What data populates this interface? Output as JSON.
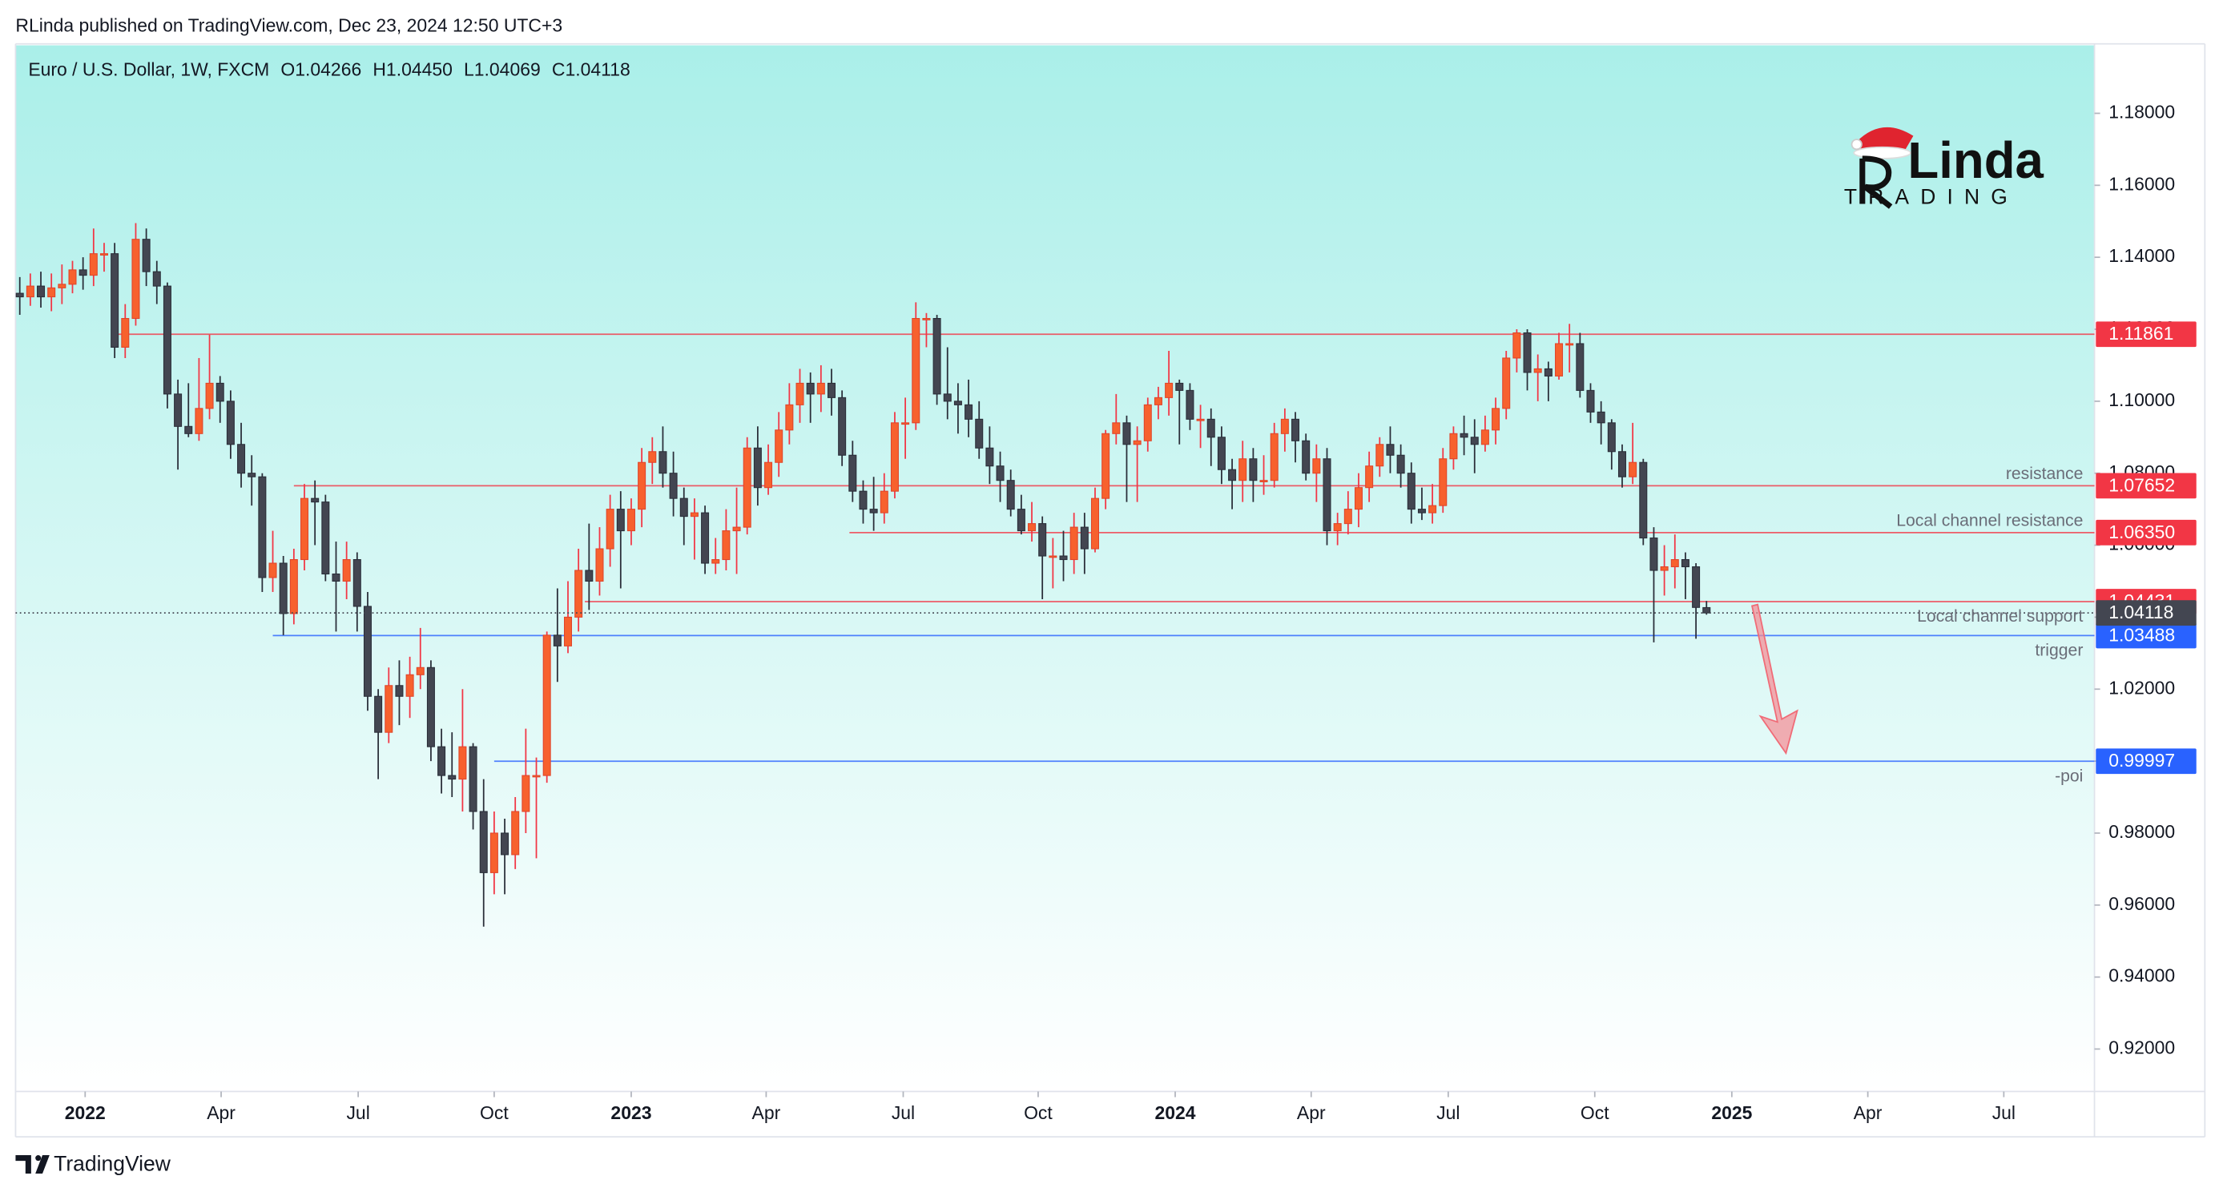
{
  "header": "RLinda published on TradingView.com, Dec 23, 2024 12:50 UTC+3",
  "footer": "TradingView",
  "logo": {
    "name": "Linda",
    "tag": "TRADING"
  },
  "chart_data": {
    "type": "candlestick",
    "symbol": "Euro / U.S. Dollar, 1W, FXCM",
    "ohlc_legend": [
      "O1.04266",
      "H1.04450",
      "L1.04069",
      "C1.04118"
    ],
    "up_color": "#f7612e",
    "down_color": "#434651",
    "xlim": [
      -0.4,
      196.8
    ],
    "xticks": [
      {
        "value": 6.2,
        "label": "2022"
      },
      {
        "value": 19.1,
        "label": "Apr"
      },
      {
        "value": 32.1,
        "label": "Jul"
      },
      {
        "value": 45,
        "label": "Oct"
      },
      {
        "value": 58,
        "label": "2023"
      },
      {
        "value": 70.8,
        "label": "Apr"
      },
      {
        "value": 83.8,
        "label": "Jul"
      },
      {
        "value": 96.6,
        "label": "Oct"
      },
      {
        "value": 109.6,
        "label": "2024"
      },
      {
        "value": 122.5,
        "label": "Apr"
      },
      {
        "value": 135.5,
        "label": "Jul"
      },
      {
        "value": 149.4,
        "label": "Oct"
      },
      {
        "value": 162.4,
        "label": "2025"
      },
      {
        "value": 175.3,
        "label": "Apr"
      },
      {
        "value": 188.2,
        "label": "Jul"
      }
    ],
    "ylim": [
      0.9082,
      1.1989
    ],
    "yticks": [
      {
        "value": 0.92,
        "label": "0.92000"
      },
      {
        "value": 0.94,
        "label": "0.94000"
      },
      {
        "value": 0.96,
        "label": "0.96000"
      },
      {
        "value": 0.98,
        "label": "0.98000"
      },
      {
        "value": 1.0,
        "label": "1.00000"
      },
      {
        "value": 1.02,
        "label": "1.02000"
      },
      {
        "value": 1.04,
        "label": "1.04000"
      },
      {
        "value": 1.06,
        "label": "1.06000"
      },
      {
        "value": 1.08,
        "label": "1.08000"
      },
      {
        "value": 1.1,
        "label": "1.10000"
      },
      {
        "value": 1.12,
        "label": "1.12000"
      },
      {
        "value": 1.14,
        "label": "1.14000"
      },
      {
        "value": 1.16,
        "label": "1.16000"
      },
      {
        "value": 1.18,
        "label": "1.18000"
      }
    ],
    "levels": [
      {
        "value": 1.11861,
        "from": 8.9,
        "color": "#f23645"
      },
      {
        "value": 1.07652,
        "from": 26,
        "color": "#f23645",
        "annotation": "resistance",
        "annotation_position": "above"
      },
      {
        "value": 1.0635,
        "value_label": "1.06350",
        "from": 78.7,
        "color": "#f23645",
        "annotation": "Local channel resistance",
        "annotation_position": "above"
      },
      {
        "value": 1.04431,
        "from": 53.6,
        "color": "#f23645",
        "annotation": "Local channel support",
        "annotation_position": "below"
      },
      {
        "value": 1.03488,
        "from": 24,
        "color": "#2962ff",
        "annotation": "trigger",
        "annotation_position": "below"
      },
      {
        "value": 0.99997,
        "from": 45,
        "color": "#2962ff",
        "annotation": "-poi",
        "annotation_position": "below"
      }
    ],
    "last_price_color": "#434651",
    "candles": [
      [
        1.13,
        1.1345,
        1.124,
        1.129
      ],
      [
        1.129,
        1.1355,
        1.1265,
        1.132
      ],
      [
        1.132,
        1.136,
        1.126,
        1.129
      ],
      [
        1.129,
        1.1355,
        1.125,
        1.1315
      ],
      [
        1.1315,
        1.138,
        1.127,
        1.1325
      ],
      [
        1.1325,
        1.139,
        1.13,
        1.1365
      ],
      [
        1.1365,
        1.14,
        1.131,
        1.135
      ],
      [
        1.135,
        1.148,
        1.132,
        1.141
      ],
      [
        1.141,
        1.144,
        1.136,
        1.141
      ],
      [
        1.141,
        1.144,
        1.112,
        1.115
      ],
      [
        1.115,
        1.127,
        1.112,
        1.123
      ],
      [
        1.123,
        1.1495,
        1.121,
        1.145
      ],
      [
        1.145,
        1.148,
        1.132,
        1.136
      ],
      [
        1.136,
        1.139,
        1.127,
        1.132
      ],
      [
        1.132,
        1.133,
        1.098,
        1.102
      ],
      [
        1.102,
        1.106,
        1.081,
        1.093
      ],
      [
        1.093,
        1.105,
        1.09,
        1.091
      ],
      [
        1.091,
        1.112,
        1.089,
        1.098
      ],
      [
        1.098,
        1.1185,
        1.095,
        1.105
      ],
      [
        1.105,
        1.107,
        1.094,
        1.1
      ],
      [
        1.1,
        1.103,
        1.084,
        1.088
      ],
      [
        1.088,
        1.094,
        1.076,
        1.08
      ],
      [
        1.08,
        1.085,
        1.071,
        1.079
      ],
      [
        1.079,
        1.08,
        1.047,
        1.051
      ],
      [
        1.051,
        1.064,
        1.047,
        1.055
      ],
      [
        1.055,
        1.057,
        1.035,
        1.041
      ],
      [
        1.041,
        1.059,
        1.038,
        1.056
      ],
      [
        1.056,
        1.077,
        1.053,
        1.073
      ],
      [
        1.073,
        1.078,
        1.06,
        1.072
      ],
      [
        1.072,
        1.074,
        1.05,
        1.052
      ],
      [
        1.052,
        1.061,
        1.036,
        1.05
      ],
      [
        1.05,
        1.061,
        1.045,
        1.056
      ],
      [
        1.056,
        1.058,
        1.036,
        1.043
      ],
      [
        1.043,
        1.047,
        1.014,
        1.018
      ],
      [
        1.018,
        1.02,
        0.995,
        1.008
      ],
      [
        1.008,
        1.026,
        1.005,
        1.021
      ],
      [
        1.021,
        1.028,
        1.01,
        1.018
      ],
      [
        1.018,
        1.029,
        1.012,
        1.024
      ],
      [
        1.024,
        1.037,
        1.02,
        1.026
      ],
      [
        1.026,
        1.028,
        1.0,
        1.004
      ],
      [
        1.004,
        1.009,
        0.991,
        0.996
      ],
      [
        0.996,
        1.008,
        0.99,
        0.995
      ],
      [
        0.995,
        1.02,
        0.986,
        1.004
      ],
      [
        1.004,
        1.005,
        0.981,
        0.986
      ],
      [
        0.986,
        0.995,
        0.954,
        0.969
      ],
      [
        0.969,
        0.986,
        0.963,
        0.98
      ],
      [
        0.98,
        0.984,
        0.963,
        0.974
      ],
      [
        0.974,
        0.99,
        0.97,
        0.986
      ],
      [
        0.986,
        1.009,
        0.98,
        0.996
      ],
      [
        0.996,
        1.001,
        0.973,
        0.996
      ],
      [
        0.996,
        1.036,
        0.994,
        1.035
      ],
      [
        1.035,
        1.048,
        1.022,
        1.032
      ],
      [
        1.032,
        1.05,
        1.03,
        1.04
      ],
      [
        1.04,
        1.059,
        1.036,
        1.053
      ],
      [
        1.053,
        1.066,
        1.042,
        1.05
      ],
      [
        1.05,
        1.065,
        1.046,
        1.059
      ],
      [
        1.059,
        1.074,
        1.054,
        1.07
      ],
      [
        1.07,
        1.075,
        1.048,
        1.064
      ],
      [
        1.064,
        1.073,
        1.06,
        1.07
      ],
      [
        1.07,
        1.087,
        1.065,
        1.083
      ],
      [
        1.083,
        1.09,
        1.077,
        1.086
      ],
      [
        1.086,
        1.093,
        1.076,
        1.08
      ],
      [
        1.08,
        1.086,
        1.068,
        1.073
      ],
      [
        1.073,
        1.076,
        1.06,
        1.068
      ],
      [
        1.068,
        1.073,
        1.056,
        1.069
      ],
      [
        1.069,
        1.071,
        1.052,
        1.055
      ],
      [
        1.055,
        1.062,
        1.052,
        1.056
      ],
      [
        1.056,
        1.07,
        1.053,
        1.064
      ],
      [
        1.064,
        1.076,
        1.052,
        1.065
      ],
      [
        1.065,
        1.09,
        1.063,
        1.087
      ],
      [
        1.087,
        1.093,
        1.071,
        1.076
      ],
      [
        1.076,
        1.088,
        1.074,
        1.083
      ],
      [
        1.083,
        1.097,
        1.079,
        1.092
      ],
      [
        1.092,
        1.105,
        1.088,
        1.099
      ],
      [
        1.099,
        1.109,
        1.094,
        1.105
      ],
      [
        1.105,
        1.108,
        1.094,
        1.102
      ],
      [
        1.102,
        1.11,
        1.097,
        1.105
      ],
      [
        1.105,
        1.109,
        1.096,
        1.101
      ],
      [
        1.101,
        1.103,
        1.082,
        1.085
      ],
      [
        1.085,
        1.089,
        1.072,
        1.075
      ],
      [
        1.075,
        1.078,
        1.066,
        1.07
      ],
      [
        1.07,
        1.079,
        1.064,
        1.069
      ],
      [
        1.069,
        1.08,
        1.066,
        1.075
      ],
      [
        1.075,
        1.097,
        1.073,
        1.094
      ],
      [
        1.094,
        1.101,
        1.084,
        1.094
      ],
      [
        1.094,
        1.1275,
        1.092,
        1.123
      ],
      [
        1.123,
        1.1245,
        1.115,
        1.123
      ],
      [
        1.123,
        1.124,
        1.099,
        1.102
      ],
      [
        1.102,
        1.115,
        1.095,
        1.1
      ],
      [
        1.1,
        1.105,
        1.091,
        1.099
      ],
      [
        1.099,
        1.106,
        1.09,
        1.095
      ],
      [
        1.095,
        1.1,
        1.084,
        1.087
      ],
      [
        1.087,
        1.093,
        1.077,
        1.082
      ],
      [
        1.082,
        1.086,
        1.072,
        1.078
      ],
      [
        1.078,
        1.081,
        1.068,
        1.07
      ],
      [
        1.07,
        1.074,
        1.063,
        1.064
      ],
      [
        1.064,
        1.072,
        1.061,
        1.066
      ],
      [
        1.066,
        1.068,
        1.045,
        1.057
      ],
      [
        1.057,
        1.062,
        1.048,
        1.057
      ],
      [
        1.057,
        1.064,
        1.05,
        1.056
      ],
      [
        1.056,
        1.069,
        1.052,
        1.065
      ],
      [
        1.065,
        1.069,
        1.052,
        1.059
      ],
      [
        1.059,
        1.076,
        1.058,
        1.073
      ],
      [
        1.073,
        1.092,
        1.07,
        1.091
      ],
      [
        1.091,
        1.102,
        1.088,
        1.094
      ],
      [
        1.094,
        1.096,
        1.072,
        1.088
      ],
      [
        1.088,
        1.093,
        1.072,
        1.089
      ],
      [
        1.089,
        1.101,
        1.086,
        1.099
      ],
      [
        1.099,
        1.104,
        1.095,
        1.101
      ],
      [
        1.101,
        1.114,
        1.096,
        1.105
      ],
      [
        1.105,
        1.106,
        1.088,
        1.103
      ],
      [
        1.103,
        1.105,
        1.092,
        1.095
      ],
      [
        1.095,
        1.099,
        1.087,
        1.095
      ],
      [
        1.095,
        1.098,
        1.082,
        1.09
      ],
      [
        1.09,
        1.093,
        1.077,
        1.081
      ],
      [
        1.081,
        1.084,
        1.07,
        1.078
      ],
      [
        1.078,
        1.089,
        1.072,
        1.084
      ],
      [
        1.084,
        1.087,
        1.072,
        1.078
      ],
      [
        1.078,
        1.085,
        1.074,
        1.078
      ],
      [
        1.078,
        1.094,
        1.076,
        1.091
      ],
      [
        1.091,
        1.098,
        1.086,
        1.095
      ],
      [
        1.095,
        1.097,
        1.083,
        1.089
      ],
      [
        1.089,
        1.091,
        1.078,
        1.08
      ],
      [
        1.08,
        1.088,
        1.072,
        1.084
      ],
      [
        1.084,
        1.087,
        1.06,
        1.064
      ],
      [
        1.064,
        1.069,
        1.06,
        1.066
      ],
      [
        1.066,
        1.075,
        1.063,
        1.07
      ],
      [
        1.07,
        1.08,
        1.065,
        1.076
      ],
      [
        1.076,
        1.086,
        1.072,
        1.082
      ],
      [
        1.082,
        1.09,
        1.079,
        1.088
      ],
      [
        1.088,
        1.093,
        1.08,
        1.085
      ],
      [
        1.085,
        1.088,
        1.076,
        1.08
      ],
      [
        1.08,
        1.083,
        1.066,
        1.07
      ],
      [
        1.07,
        1.076,
        1.067,
        1.069
      ],
      [
        1.069,
        1.077,
        1.066,
        1.071
      ],
      [
        1.071,
        1.087,
        1.069,
        1.084
      ],
      [
        1.084,
        1.093,
        1.081,
        1.091
      ],
      [
        1.091,
        1.096,
        1.085,
        1.09
      ],
      [
        1.09,
        1.095,
        1.08,
        1.088
      ],
      [
        1.088,
        1.096,
        1.086,
        1.092
      ],
      [
        1.092,
        1.101,
        1.088,
        1.098
      ],
      [
        1.098,
        1.114,
        1.095,
        1.112
      ],
      [
        1.112,
        1.12,
        1.108,
        1.119
      ],
      [
        1.119,
        1.12,
        1.103,
        1.108
      ],
      [
        1.108,
        1.113,
        1.1,
        1.109
      ],
      [
        1.109,
        1.111,
        1.1,
        1.107
      ],
      [
        1.107,
        1.119,
        1.106,
        1.116
      ],
      [
        1.116,
        1.1215,
        1.108,
        1.116
      ],
      [
        1.116,
        1.119,
        1.101,
        1.103
      ],
      [
        1.103,
        1.105,
        1.094,
        1.097
      ],
      [
        1.097,
        1.1,
        1.088,
        1.094
      ],
      [
        1.094,
        1.095,
        1.081,
        1.086
      ],
      [
        1.086,
        1.088,
        1.076,
        1.079
      ],
      [
        1.079,
        1.094,
        1.077,
        1.083
      ],
      [
        1.083,
        1.084,
        1.06,
        1.062
      ],
      [
        1.062,
        1.065,
        1.033,
        1.053
      ],
      [
        1.053,
        1.06,
        1.046,
        1.054
      ],
      [
        1.054,
        1.063,
        1.048,
        1.056
      ],
      [
        1.056,
        1.058,
        1.045,
        1.054
      ],
      [
        1.054,
        1.055,
        1.034,
        1.0427
      ],
      [
        1.04266,
        1.0445,
        1.04069,
        1.04118
      ]
    ]
  }
}
